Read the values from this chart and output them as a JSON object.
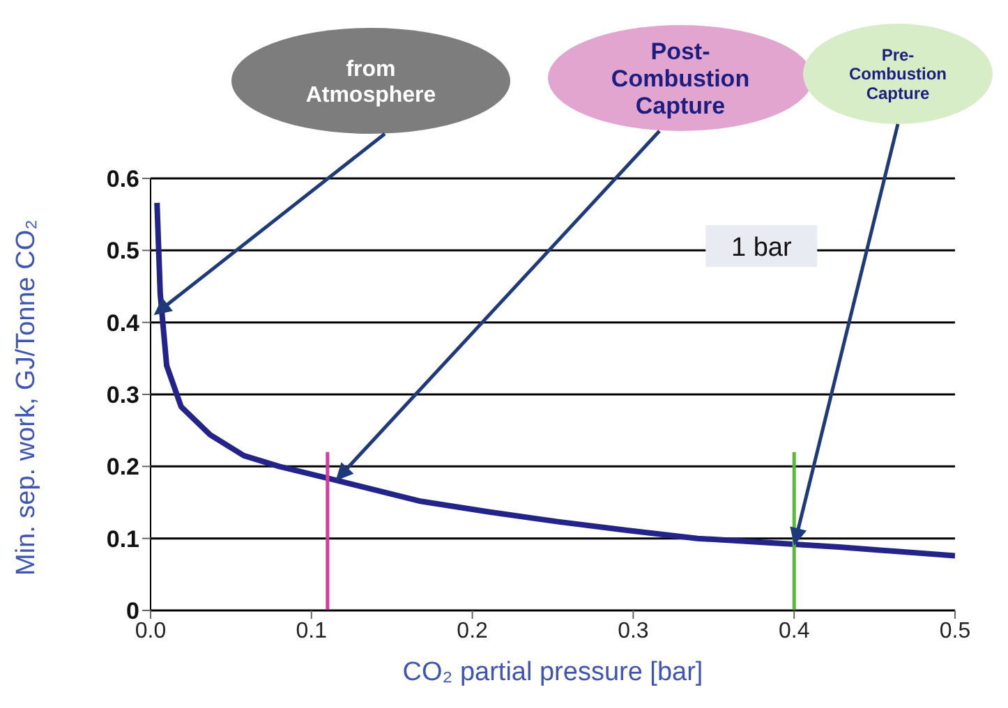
{
  "chart_data": {
    "type": "line",
    "xlabel": "CO₂ partial pressure [bar]",
    "ylabel": "Min. sep. work, GJ/Tonne CO₂",
    "xlim": [
      0,
      0.5
    ],
    "xticks": [
      {
        "value": 0,
        "label": "0.0"
      },
      0.1,
      0.2,
      0.3,
      0.4,
      0.5
    ],
    "ylim": [
      0,
      0.6
    ],
    "yticks": [
      0,
      0.1,
      0.2,
      0.3,
      0.4,
      0.5,
      0.6
    ],
    "grid": "y",
    "marker": "none",
    "line_style": "solid",
    "series": [
      {
        "color": "#23238a",
        "x": [
          0.004,
          0.006,
          0.01,
          0.019,
          0.037,
          0.058,
          0.08,
          0.113,
          0.167,
          0.21,
          0.254,
          0.297,
          0.34,
          0.384,
          0.428,
          0.5
        ],
        "values": [
          0.566,
          0.44,
          0.34,
          0.283,
          0.244,
          0.215,
          0.2,
          0.182,
          0.152,
          0.137,
          0.123,
          0.111,
          0.1,
          0.094,
          0.088,
          0.076
        ]
      },
      {
        "color": "#d63ca0",
        "x": [
          0.11,
          0.11
        ],
        "values": [
          0,
          0.22
        ]
      },
      {
        "color": "#5cb83c",
        "x": [
          0.4,
          0.4
        ],
        "values": [
          0,
          0.22
        ]
      }
    ],
    "annotations": [
      {
        "text": "from Atmosphere",
        "x": 0.002,
        "y": 0.41
      },
      {
        "text": "Post-Combustion Capture",
        "x": 0.115,
        "y": 0.18
      },
      {
        "text": "Pre-Combustion Capture",
        "x": 0.4,
        "y": 0.09
      },
      "1 bar"
    ]
  }
}
